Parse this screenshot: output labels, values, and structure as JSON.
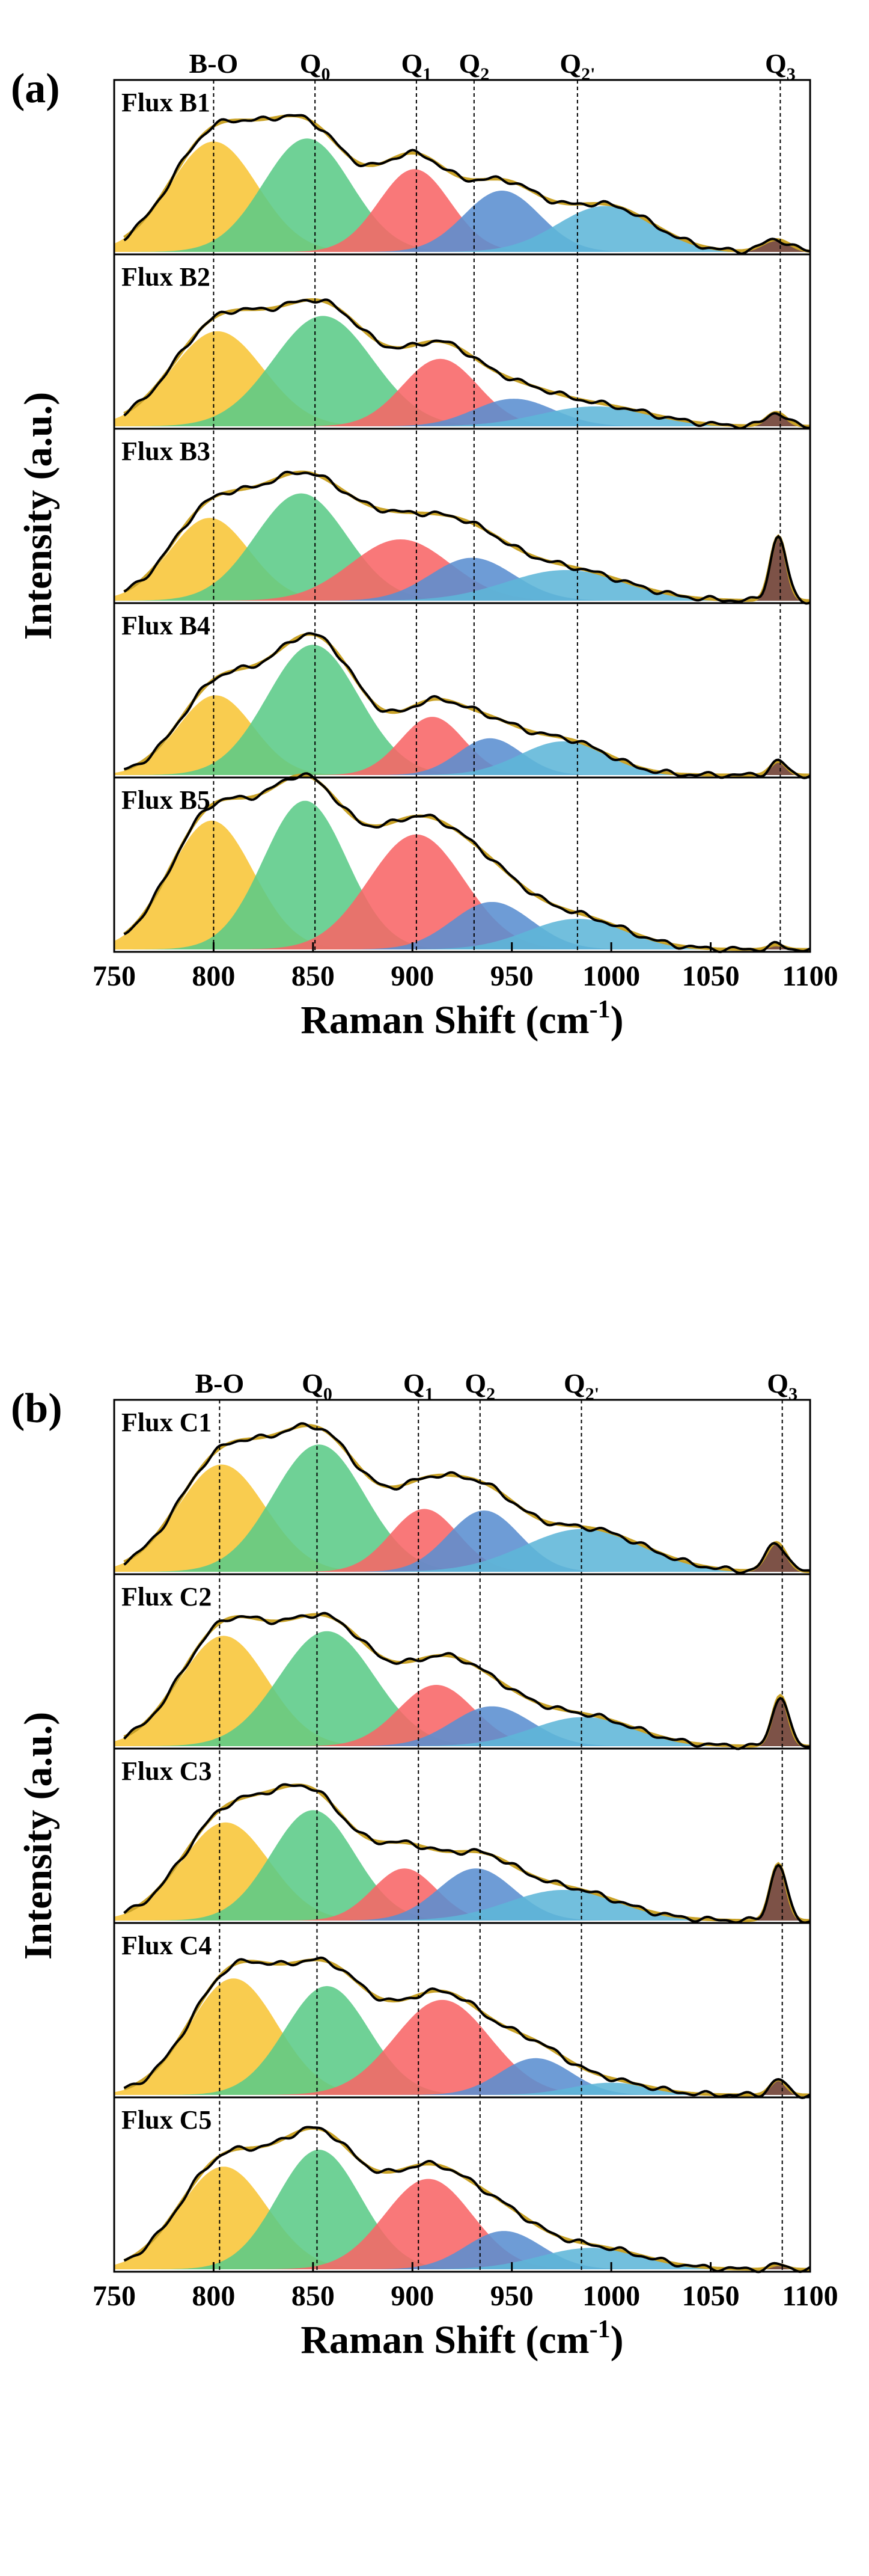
{
  "colors": {
    "bo": "#F8C537",
    "q0": "#5BCB88",
    "q1": "#F86566",
    "q2": "#5A8ED0",
    "q2p": "#5FB6D8",
    "q3": "#6B3A2E",
    "measured": "#000000",
    "fit": "#C9A227"
  },
  "chart_data": [
    {
      "type": "area",
      "panel_label": "(a)",
      "xlabel": "Raman Shift (cm",
      "xlabel_sup": "-1",
      "xlabel_tail": ")",
      "ylabel": "Intensity (a.u.)",
      "xlim": [
        750,
        1100
      ],
      "xticks": [
        "750",
        "800",
        "850",
        "900",
        "950",
        "1000",
        "1050",
        "1100"
      ],
      "peak_lines": [
        {
          "base": "B-O",
          "sub": "",
          "x": 800
        },
        {
          "base": "Q",
          "sub": "0",
          "x": 851
        },
        {
          "base": "Q",
          "sub": "1",
          "x": 902
        },
        {
          "base": "Q",
          "sub": "2",
          "x": 931
        },
        {
          "base": "Q",
          "sub": "2'",
          "x": 983
        },
        {
          "base": "Q",
          "sub": "3",
          "x": 1085
        }
      ],
      "samples": [
        {
          "name": "Flux B1",
          "peaks": [
            {
              "band": "bo",
              "center": 800,
              "height": 0.72,
              "width": 22
            },
            {
              "band": "q0",
              "center": 847,
              "height": 0.74,
              "width": 22
            },
            {
              "band": "q1",
              "center": 901,
              "height": 0.54,
              "width": 18
            },
            {
              "band": "q2",
              "center": 945,
              "height": 0.4,
              "width": 19
            },
            {
              "band": "q2p",
              "center": 997,
              "height": 0.3,
              "width": 24
            },
            {
              "band": "q3",
              "center": 1083,
              "height": 0.08,
              "width": 7
            }
          ]
        },
        {
          "name": "Flux B2",
          "peaks": [
            {
              "band": "bo",
              "center": 802,
              "height": 0.62,
              "width": 23
            },
            {
              "band": "q0",
              "center": 855,
              "height": 0.72,
              "width": 25
            },
            {
              "band": "q1",
              "center": 914,
              "height": 0.44,
              "width": 19
            },
            {
              "band": "q2",
              "center": 951,
              "height": 0.18,
              "width": 20
            },
            {
              "band": "q2p",
              "center": 992,
              "height": 0.13,
              "width": 28
            },
            {
              "band": "q3",
              "center": 1083,
              "height": 0.09,
              "width": 5
            }
          ]
        },
        {
          "name": "Flux B3",
          "peaks": [
            {
              "band": "bo",
              "center": 798,
              "height": 0.54,
              "width": 20
            },
            {
              "band": "q0",
              "center": 844,
              "height": 0.7,
              "width": 23
            },
            {
              "band": "q1",
              "center": 894,
              "height": 0.4,
              "width": 25
            },
            {
              "band": "q2",
              "center": 930,
              "height": 0.28,
              "width": 21
            },
            {
              "band": "q2p",
              "center": 977,
              "height": 0.2,
              "width": 30
            },
            {
              "band": "q3",
              "center": 1084,
              "height": 0.42,
              "width": 4
            }
          ]
        },
        {
          "name": "Flux B4",
          "peaks": [
            {
              "band": "bo",
              "center": 801,
              "height": 0.52,
              "width": 19
            },
            {
              "band": "q0",
              "center": 850,
              "height": 0.85,
              "width": 23
            },
            {
              "band": "q1",
              "center": 910,
              "height": 0.38,
              "width": 16
            },
            {
              "band": "q2",
              "center": 939,
              "height": 0.24,
              "width": 16
            },
            {
              "band": "q2p",
              "center": 976,
              "height": 0.22,
              "width": 22
            },
            {
              "band": "q3",
              "center": 1084,
              "height": 0.09,
              "width": 4
            }
          ]
        },
        {
          "name": "Flux B5",
          "peaks": [
            {
              "band": "bo",
              "center": 799,
              "height": 0.84,
              "width": 21
            },
            {
              "band": "q0",
              "center": 846,
              "height": 0.97,
              "width": 21
            },
            {
              "band": "q1",
              "center": 902,
              "height": 0.75,
              "width": 24
            },
            {
              "band": "q2",
              "center": 940,
              "height": 0.31,
              "width": 20
            },
            {
              "band": "q2p",
              "center": 983,
              "height": 0.2,
              "width": 25
            },
            {
              "band": "q3",
              "center": 1083,
              "height": 0.03,
              "width": 4
            }
          ]
        }
      ]
    },
    {
      "type": "area",
      "panel_label": "(b)",
      "xlabel": "Raman Shift (cm",
      "xlabel_sup": "-1",
      "xlabel_tail": ")",
      "ylabel": "Intensity (a.u.)",
      "xlim": [
        750,
        1100
      ],
      "xticks": [
        "750",
        "800",
        "850",
        "900",
        "950",
        "1000",
        "1050",
        "1100"
      ],
      "peak_lines": [
        {
          "base": "B-O",
          "sub": "",
          "x": 803
        },
        {
          "base": "Q",
          "sub": "0",
          "x": 852
        },
        {
          "base": "Q",
          "sub": "1",
          "x": 903
        },
        {
          "base": "Q",
          "sub": "2",
          "x": 934
        },
        {
          "base": "Q",
          "sub": "2'",
          "x": 985
        },
        {
          "base": "Q",
          "sub": "3",
          "x": 1086
        }
      ],
      "samples": [
        {
          "name": "Flux C1",
          "peaks": [
            {
              "band": "bo",
              "center": 804,
              "height": 0.7,
              "width": 22
            },
            {
              "band": "q0",
              "center": 853,
              "height": 0.83,
              "width": 23
            },
            {
              "band": "q1",
              "center": 906,
              "height": 0.41,
              "width": 17
            },
            {
              "band": "q2",
              "center": 936,
              "height": 0.4,
              "width": 18
            },
            {
              "band": "q2p",
              "center": 986,
              "height": 0.28,
              "width": 30
            },
            {
              "band": "q3",
              "center": 1083,
              "height": 0.19,
              "width": 5
            }
          ]
        },
        {
          "name": "Flux C2",
          "peaks": [
            {
              "band": "bo",
              "center": 805,
              "height": 0.72,
              "width": 22
            },
            {
              "band": "q0",
              "center": 857,
              "height": 0.75,
              "width": 24
            },
            {
              "band": "q1",
              "center": 912,
              "height": 0.4,
              "width": 19
            },
            {
              "band": "q2",
              "center": 940,
              "height": 0.26,
              "width": 20
            },
            {
              "band": "q2p",
              "center": 986,
              "height": 0.19,
              "width": 26
            },
            {
              "band": "q3",
              "center": 1085,
              "height": 0.33,
              "width": 4
            }
          ]
        },
        {
          "name": "Flux C3",
          "peaks": [
            {
              "band": "bo",
              "center": 806,
              "height": 0.64,
              "width": 22
            },
            {
              "band": "q0",
              "center": 850,
              "height": 0.72,
              "width": 21
            },
            {
              "band": "q1",
              "center": 896,
              "height": 0.34,
              "width": 16
            },
            {
              "band": "q2",
              "center": 932,
              "height": 0.34,
              "width": 19
            },
            {
              "band": "q2p",
              "center": 976,
              "height": 0.2,
              "width": 28
            },
            {
              "band": "q3",
              "center": 1084,
              "height": 0.37,
              "width": 4
            }
          ]
        },
        {
          "name": "Flux C4",
          "peaks": [
            {
              "band": "bo",
              "center": 810,
              "height": 0.76,
              "width": 22
            },
            {
              "band": "q0",
              "center": 857,
              "height": 0.71,
              "width": 21
            },
            {
              "band": "q1",
              "center": 915,
              "height": 0.62,
              "width": 24
            },
            {
              "band": "q2",
              "center": 962,
              "height": 0.24,
              "width": 18
            },
            {
              "band": "q2p",
              "center": 1000,
              "height": 0.08,
              "width": 20
            },
            {
              "band": "q3",
              "center": 1084,
              "height": 0.1,
              "width": 4
            }
          ]
        },
        {
          "name": "Flux C5",
          "peaks": [
            {
              "band": "bo",
              "center": 805,
              "height": 0.67,
              "width": 22
            },
            {
              "band": "q0",
              "center": 853,
              "height": 0.78,
              "width": 21
            },
            {
              "band": "q1",
              "center": 908,
              "height": 0.59,
              "width": 22
            },
            {
              "band": "q2",
              "center": 946,
              "height": 0.25,
              "width": 19
            },
            {
              "band": "q2p",
              "center": 990,
              "height": 0.14,
              "width": 26
            },
            {
              "band": "q3",
              "center": 1084,
              "height": 0.03,
              "width": 4
            }
          ]
        }
      ]
    }
  ]
}
